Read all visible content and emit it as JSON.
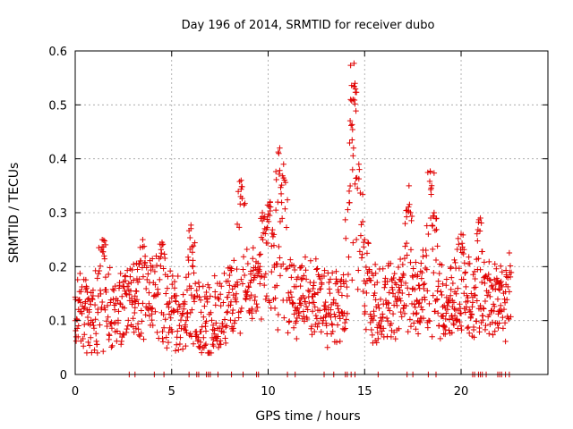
{
  "chart_data": {
    "type": "scatter",
    "title": "Day 196 of 2014, SRMTID for receiver dubo",
    "xlabel": "GPS time / hours",
    "ylabel": "SRMTID / TECUs",
    "xlim": [
      0,
      24.5
    ],
    "ylim": [
      0,
      0.6
    ],
    "x_ticks": [
      0,
      5,
      10,
      15,
      20
    ],
    "x_tick_labels": [
      "0",
      "5",
      "10",
      "15",
      "20"
    ],
    "y_ticks": [
      0,
      0.1,
      0.2,
      0.3,
      0.4,
      0.5,
      0.6
    ],
    "y_tick_labels": [
      "0",
      "0.1",
      "0.2",
      "0.3",
      "0.4",
      "0.5",
      "0.6"
    ],
    "grid": true,
    "marker": "plus",
    "series_color": "#e00000",
    "series": [
      {
        "name": "SRMTID",
        "base_level": [
          [
            0,
            0.12
          ],
          [
            1,
            0.11
          ],
          [
            2,
            0.115
          ],
          [
            3,
            0.14
          ],
          [
            4,
            0.15
          ],
          [
            5,
            0.12
          ],
          [
            6,
            0.11
          ],
          [
            7,
            0.1
          ],
          [
            8,
            0.13
          ],
          [
            9,
            0.16
          ],
          [
            10,
            0.17
          ],
          [
            11,
            0.15
          ],
          [
            12,
            0.14
          ],
          [
            13,
            0.13
          ],
          [
            14,
            0.12
          ],
          [
            14.5,
            0.2
          ],
          [
            15,
            0.13
          ],
          [
            16,
            0.13
          ],
          [
            17,
            0.15
          ],
          [
            18,
            0.15
          ],
          [
            19,
            0.14
          ],
          [
            20,
            0.14
          ],
          [
            21,
            0.14
          ],
          [
            22,
            0.14
          ],
          [
            22.6,
            0.15
          ]
        ],
        "peaks": [
          {
            "x": 8.6,
            "y": 0.36
          },
          {
            "x": 9.7,
            "y": 0.3
          },
          {
            "x": 10.1,
            "y": 0.32
          },
          {
            "x": 10.6,
            "y": 0.42
          },
          {
            "x": 10.8,
            "y": 0.39
          },
          {
            "x": 14.2,
            "y": 0.34
          },
          {
            "x": 14.35,
            "y": 0.435
          },
          {
            "x": 14.4,
            "y": 0.51
          },
          {
            "x": 14.45,
            "y": 0.577
          },
          {
            "x": 14.5,
            "y": 0.54
          },
          {
            "x": 14.7,
            "y": 0.39
          },
          {
            "x": 15.0,
            "y": 0.25
          },
          {
            "x": 17.3,
            "y": 0.35
          },
          {
            "x": 18.4,
            "y": 0.377
          },
          {
            "x": 18.6,
            "y": 0.3
          },
          {
            "x": 20.0,
            "y": 0.26
          },
          {
            "x": 21.0,
            "y": 0.29
          },
          {
            "x": 6.0,
            "y": 0.277
          },
          {
            "x": 1.4,
            "y": 0.25
          },
          {
            "x": 3.5,
            "y": 0.25
          },
          {
            "x": 4.5,
            "y": 0.245
          }
        ],
        "zero_values_x": [
          2.8,
          3.1,
          4.1,
          4.6,
          5.9,
          6.3,
          6.4,
          6.8,
          6.9,
          7.0,
          7.4,
          8.1,
          8.7,
          9.4,
          9.5,
          11.0,
          11.4,
          12.9,
          13.4,
          14.0,
          14.1,
          14.3,
          14.5,
          15.7,
          17.2,
          17.5,
          18.3,
          18.7,
          20.6,
          20.7,
          20.9,
          21.0,
          21.1,
          21.3,
          21.9,
          22.0,
          22.1,
          22.3,
          22.5
        ]
      }
    ]
  }
}
